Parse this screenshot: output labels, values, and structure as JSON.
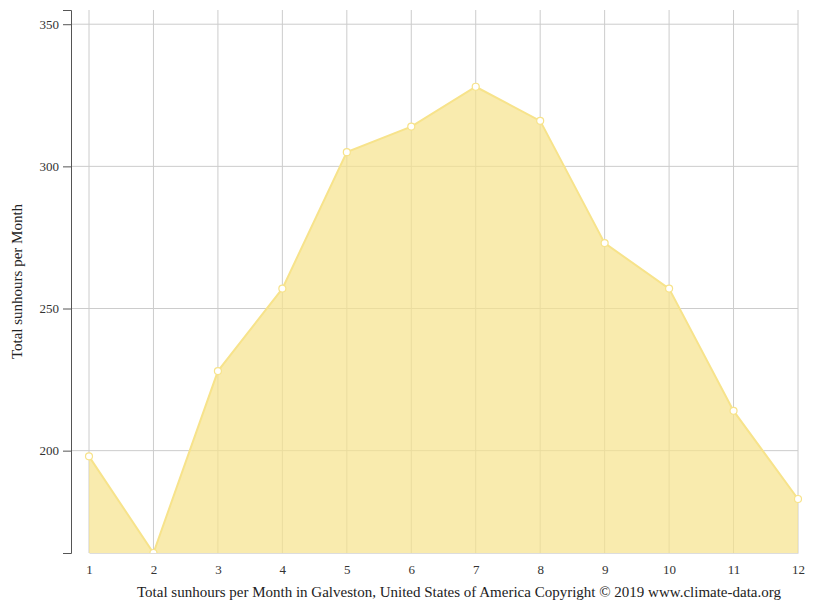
{
  "chart_data": {
    "type": "area",
    "title": "Total sunhours per Month in Galveston, United States of America Copyright © 2019 www.climate-data.org",
    "y_label": "Total sunhours per Month",
    "x": [
      1,
      2,
      3,
      4,
      5,
      6,
      7,
      8,
      9,
      10,
      11,
      12
    ],
    "values": [
      198,
      164,
      228,
      257,
      305,
      314,
      328,
      316,
      273,
      257,
      214,
      183
    ],
    "color": "#f7e38b",
    "marker": "circle",
    "xlim": [
      1,
      12
    ],
    "xticks": [
      1,
      2,
      3,
      4,
      5,
      6,
      7,
      8,
      9,
      10,
      11,
      12
    ],
    "ylim": [
      164,
      355
    ],
    "yticks": [
      200,
      250,
      300,
      350
    ],
    "grid": true
  }
}
